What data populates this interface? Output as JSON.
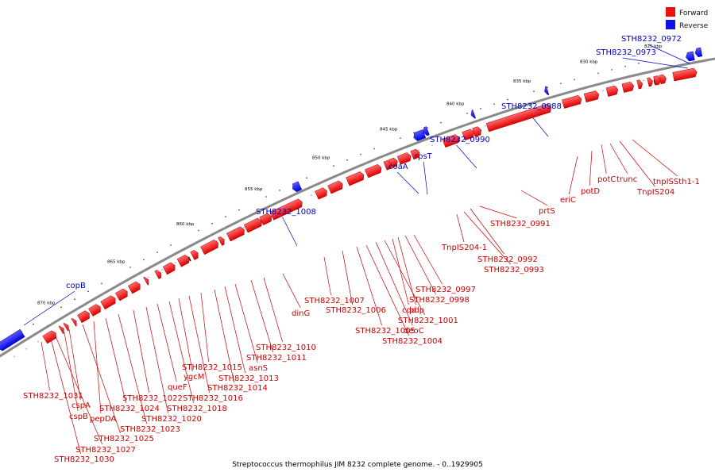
{
  "caption": "Streptococcus thermophilus JIM 8232 complete genome. - 0..1929905",
  "legend": {
    "forward_label": "Forward",
    "reverse_label": "Reverse",
    "forward_color": "#ee1111",
    "reverse_color": "#1111ee"
  },
  "axis_unit": "kbp",
  "scale_ticks": [
    {
      "kbp": 825,
      "label": "825 kbp"
    },
    {
      "kbp": 830,
      "label": "830 kbp"
    },
    {
      "kbp": 835,
      "label": "835 kbp"
    },
    {
      "kbp": 840,
      "label": "840 kbp"
    },
    {
      "kbp": 845,
      "label": "845 kbp"
    },
    {
      "kbp": 850,
      "label": "850 kbp"
    },
    {
      "kbp": 855,
      "label": "855 kbp"
    },
    {
      "kbp": 860,
      "label": "860 kbp"
    },
    {
      "kbp": 865,
      "label": "865 kbp"
    },
    {
      "kbp": 870,
      "label": "870 kbp"
    }
  ],
  "genes": [
    {
      "name": "STH8232_0972",
      "strand": "reverse"
    },
    {
      "name": "STH8232_0973",
      "strand": "reverse"
    },
    {
      "name": "tnpISSth1-1",
      "strand": "forward"
    },
    {
      "name": "TnpIS204",
      "strand": "forward"
    },
    {
      "name": "trunc",
      "strand": "forward"
    },
    {
      "name": "potC",
      "strand": "forward"
    },
    {
      "name": "potD",
      "strand": "forward"
    },
    {
      "name": "eriC",
      "strand": "forward"
    },
    {
      "name": "STH8232_0988",
      "strand": "reverse"
    },
    {
      "name": "prtS",
      "strand": "forward"
    },
    {
      "name": "STH8232_0990",
      "strand": "reverse"
    },
    {
      "name": "STH8232_0991",
      "strand": "forward"
    },
    {
      "name": "STH8232_0992",
      "strand": "forward"
    },
    {
      "name": "STH8232_0993",
      "strand": "forward"
    },
    {
      "name": "TnpIS204-1",
      "strand": "forward"
    },
    {
      "name": "rpsT",
      "strand": "reverse"
    },
    {
      "name": "coaA",
      "strand": "reverse"
    },
    {
      "name": "STH8232_0997",
      "strand": "forward"
    },
    {
      "name": "STH8232_0998",
      "strand": "forward"
    },
    {
      "name": "pdp",
      "strand": "forward"
    },
    {
      "name": "cdd",
      "strand": "forward"
    },
    {
      "name": "STH8232_1001",
      "strand": "forward"
    },
    {
      "name": "deoC",
      "strand": "forward"
    },
    {
      "name": "STH8232_1004",
      "strand": "forward"
    },
    {
      "name": "STH8232_1005",
      "strand": "forward"
    },
    {
      "name": "STH8232_1006",
      "strand": "forward"
    },
    {
      "name": "STH8232_1007",
      "strand": "forward"
    },
    {
      "name": "STH8232_1008",
      "strand": "reverse"
    },
    {
      "name": "dinG",
      "strand": "forward"
    },
    {
      "name": "STH8232_1010",
      "strand": "forward"
    },
    {
      "name": "STH8232_1011",
      "strand": "forward"
    },
    {
      "name": "asnS",
      "strand": "forward"
    },
    {
      "name": "STH8232_1013",
      "strand": "forward"
    },
    {
      "name": "STH8232_1014",
      "strand": "forward"
    },
    {
      "name": "STH8232_1015",
      "strand": "forward"
    },
    {
      "name": "STH8232_1016",
      "strand": "forward"
    },
    {
      "name": "ygcM",
      "strand": "forward"
    },
    {
      "name": "STH8232_1018",
      "strand": "forward"
    },
    {
      "name": "queF",
      "strand": "forward"
    },
    {
      "name": "STH8232_1020",
      "strand": "forward"
    },
    {
      "name": "STH8232_1022",
      "strand": "forward"
    },
    {
      "name": "STH8232_1023",
      "strand": "forward"
    },
    {
      "name": "STH8232_1024",
      "strand": "forward"
    },
    {
      "name": "pepDA",
      "strand": "forward"
    },
    {
      "name": "STH8232_1025",
      "strand": "forward"
    },
    {
      "name": "cspA",
      "strand": "forward"
    },
    {
      "name": "cspB",
      "strand": "forward"
    },
    {
      "name": "STH8232_1027",
      "strand": "forward"
    },
    {
      "name": "STH8232_1030",
      "strand": "forward"
    },
    {
      "name": "STH8232_1031",
      "strand": "forward"
    },
    {
      "name": "copB",
      "strand": "reverse"
    }
  ]
}
